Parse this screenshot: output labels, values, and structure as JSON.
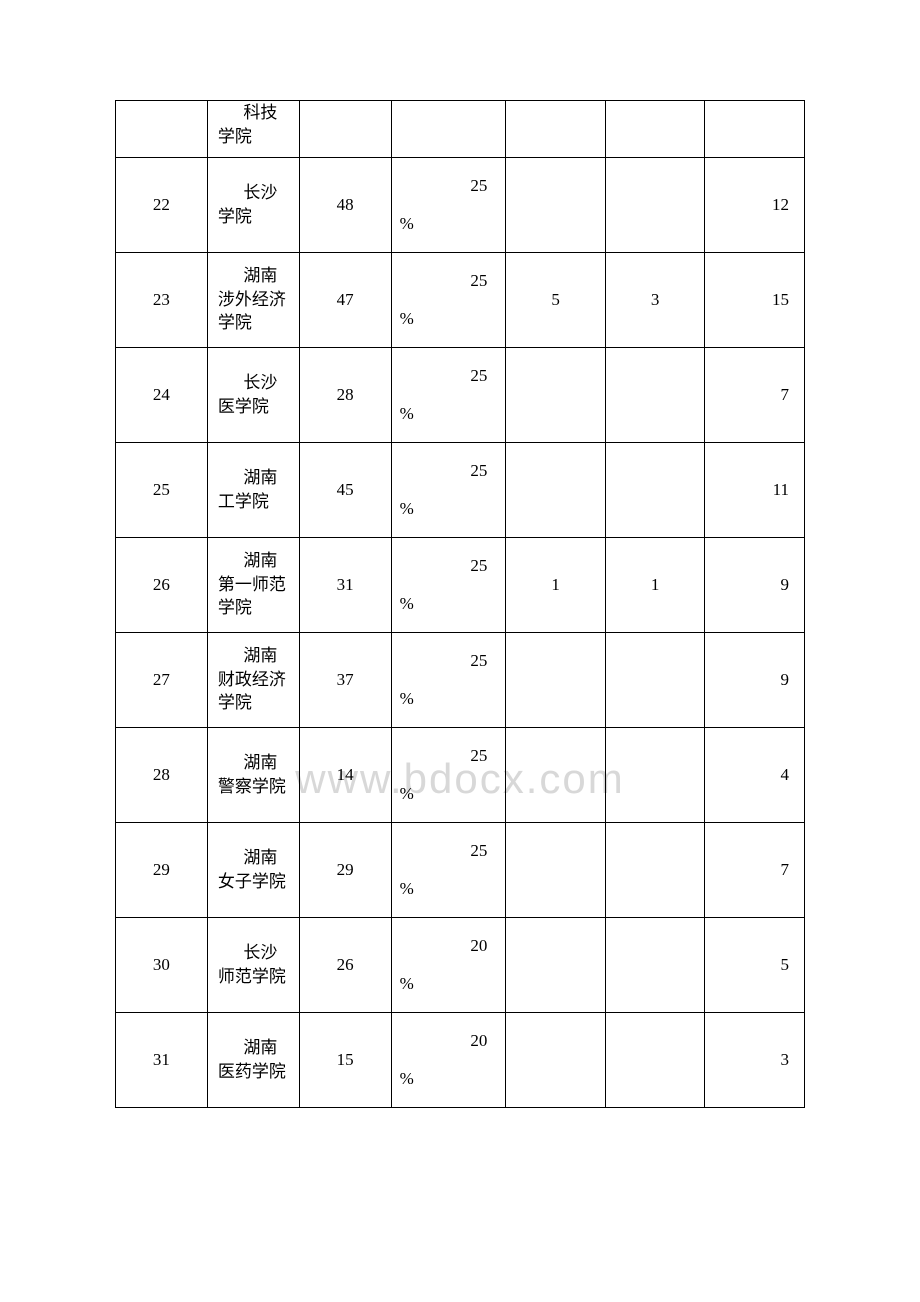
{
  "watermark": "www.bdocx.com",
  "table": {
    "columns": [
      "num",
      "name",
      "val1",
      "pct",
      "val2",
      "val3",
      "val4"
    ],
    "column_widths": [
      "12%",
      "12%",
      "12%",
      "15%",
      "13%",
      "13%",
      "13%"
    ],
    "border_color": "#000000",
    "font_size": 17,
    "rows": [
      {
        "num": "",
        "name": "科技学院",
        "val1": "",
        "pct_num": "",
        "pct_sym": "",
        "val2": "",
        "val3": "",
        "val4": "",
        "first": true
      },
      {
        "num": "22",
        "name": "长沙学院",
        "val1": "48",
        "pct_num": "25",
        "pct_sym": "%",
        "val2": "",
        "val3": "",
        "val4": "12"
      },
      {
        "num": "23",
        "name": "湖南涉外经济学院",
        "val1": "47",
        "pct_num": "25",
        "pct_sym": "%",
        "val2": "5",
        "val3": "3",
        "val4": "15"
      },
      {
        "num": "24",
        "name": "长沙医学院",
        "val1": "28",
        "pct_num": "25",
        "pct_sym": "%",
        "val2": "",
        "val3": "",
        "val4": "7"
      },
      {
        "num": "25",
        "name": "湖南工学院",
        "val1": "45",
        "pct_num": "25",
        "pct_sym": "%",
        "val2": "",
        "val3": "",
        "val4": "11"
      },
      {
        "num": "26",
        "name": "湖南第一师范学院",
        "val1": "31",
        "pct_num": "25",
        "pct_sym": "%",
        "val2": "1",
        "val3": "1",
        "val4": "9"
      },
      {
        "num": "27",
        "name": "湖南财政经济学院",
        "val1": "37",
        "pct_num": "25",
        "pct_sym": "%",
        "val2": "",
        "val3": "",
        "val4": "9"
      },
      {
        "num": "28",
        "name": "湖南警察学院",
        "val1": "14",
        "pct_num": "25",
        "pct_sym": "%",
        "val2": "",
        "val3": "",
        "val4": "4"
      },
      {
        "num": "29",
        "name": "湖南女子学院",
        "val1": "29",
        "pct_num": "25",
        "pct_sym": "%",
        "val2": "",
        "val3": "",
        "val4": "7"
      },
      {
        "num": "30",
        "name": "长沙师范学院",
        "val1": "26",
        "pct_num": "20",
        "pct_sym": "%",
        "val2": "",
        "val3": "",
        "val4": "5"
      },
      {
        "num": "31",
        "name": "湖南医药学院",
        "val1": "15",
        "pct_num": "20",
        "pct_sym": "%",
        "val2": "",
        "val3": "",
        "val4": "3"
      }
    ]
  }
}
